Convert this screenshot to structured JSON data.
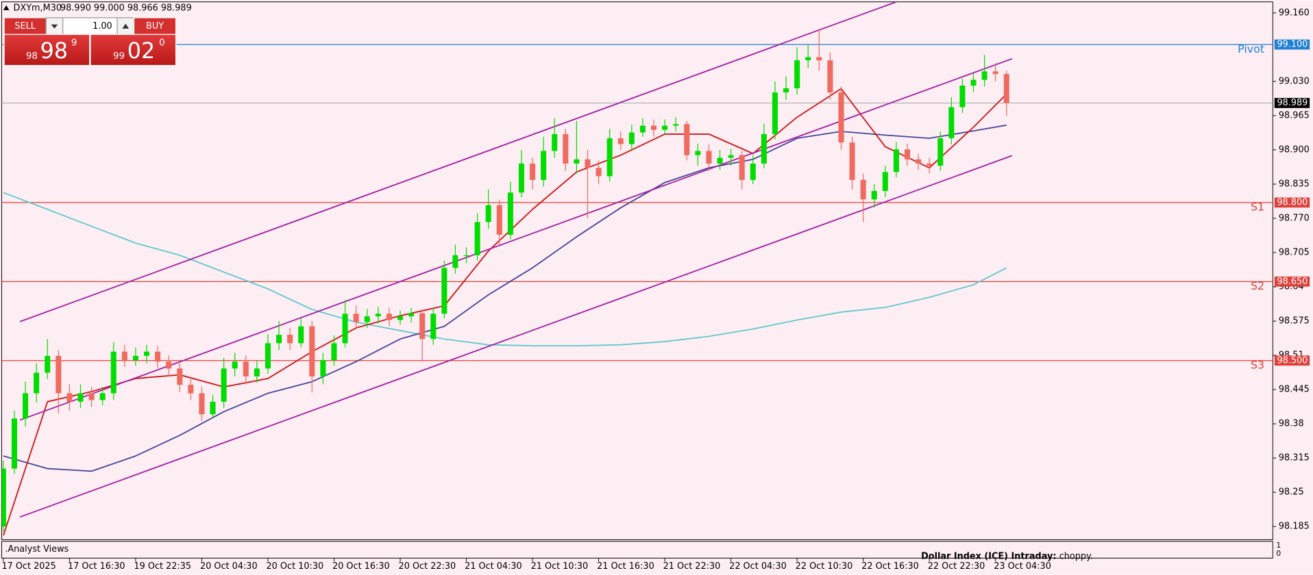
{
  "chart_data": {
    "type": "candlestick",
    "symbol": "DXYm,M30",
    "header_prices": "98.990 99.000 98.966 98.989",
    "ylim": [
      98.16,
      99.181
    ],
    "yticks": [
      {
        "value": 99.16,
        "label": "99.160"
      },
      {
        "value": 99.03,
        "label": "99.030"
      },
      98.965,
      {
        "value": 98.9,
        "label": "98.900"
      },
      98.835,
      {
        "value": 98.77,
        "label": "98.770"
      },
      98.705,
      98.64,
      98.575,
      98.51,
      98.445,
      98.38,
      98.315,
      98.25,
      98.185
    ],
    "categories": [
      "17 Oct 2025",
      null,
      null,
      null,
      null,
      null,
      "17 Oct 16:30",
      null,
      null,
      null,
      null,
      null,
      "19 Oct 22:35",
      null,
      null,
      null,
      null,
      null,
      "20 Oct 04:30",
      null,
      null,
      null,
      null,
      null,
      "20 Oct 10:30",
      null,
      null,
      null,
      null,
      null,
      "20 Oct 16:30",
      null,
      null,
      null,
      null,
      null,
      "20 Oct 22:30",
      null,
      null,
      null,
      null,
      null,
      "21 Oct 04:30",
      null,
      null,
      null,
      null,
      null,
      "21 Oct 10:30",
      null,
      null,
      null,
      null,
      null,
      "21 Oct 16:30",
      null,
      null,
      null,
      null,
      null,
      "21 Oct 22:30",
      null,
      null,
      null,
      null,
      null,
      "22 Oct 04:30",
      null,
      null,
      null,
      null,
      null,
      "22 Oct 10:30",
      null,
      null,
      null,
      null,
      null,
      "22 Oct 16:30",
      null,
      null,
      null,
      null,
      null,
      "22 Oct 22:30",
      null,
      null,
      null,
      null,
      null,
      "23 Oct 04:30",
      null
    ],
    "up_color": "#00dd00",
    "down_color": "#ef6a5f",
    "ohlc": {
      "open": [
        98.185,
        98.295,
        98.39,
        98.438,
        98.477,
        98.509,
        98.438,
        98.422,
        98.438,
        98.425,
        98.438,
        98.517,
        98.501,
        98.509,
        98.517,
        98.498,
        98.485,
        98.454,
        98.438,
        98.398,
        98.422,
        98.485,
        98.498,
        98.47,
        98.485,
        98.533,
        98.549,
        98.533,
        98.565,
        98.47,
        98.501,
        98.533,
        98.589,
        98.573,
        98.584,
        98.589,
        98.577,
        98.584,
        98.59,
        98.541,
        98.589,
        98.676,
        98.7,
        98.7,
        98.763,
        98.795,
        98.739,
        98.819,
        98.874,
        98.843,
        98.898,
        98.93,
        98.874,
        98.882,
        98.866,
        98.85,
        98.922,
        98.911,
        98.933,
        98.946,
        98.938,
        98.946,
        98.949,
        98.89,
        98.898,
        98.874,
        98.885,
        98.89,
        98.843,
        98.874,
        98.93,
        99.009,
        99.017,
        99.07,
        99.076,
        99.07,
        99.009,
        98.914,
        98.843,
        98.806,
        98.822,
        98.858,
        98.901,
        98.882,
        98.874,
        98.87,
        98.922,
        98.981,
        99.022,
        99.033,
        99.049,
        99.044
      ],
      "high": [
        98.31,
        98.405,
        98.46,
        98.495,
        98.541,
        98.52,
        98.455,
        98.455,
        98.45,
        98.45,
        98.535,
        98.53,
        98.525,
        98.53,
        98.528,
        98.51,
        98.495,
        98.465,
        98.45,
        98.435,
        98.505,
        98.515,
        98.51,
        98.5,
        98.55,
        98.575,
        98.562,
        98.58,
        98.575,
        98.515,
        98.548,
        98.615,
        98.605,
        98.598,
        98.602,
        98.6,
        98.595,
        98.6,
        98.598,
        98.6,
        98.69,
        98.72,
        98.715,
        98.78,
        98.825,
        98.805,
        98.84,
        98.9,
        98.885,
        98.925,
        98.96,
        98.94,
        98.955,
        98.9,
        98.88,
        98.94,
        98.935,
        98.948,
        98.96,
        98.958,
        98.958,
        98.962,
        98.955,
        98.912,
        98.91,
        98.9,
        98.902,
        98.898,
        98.89,
        98.95,
        99.03,
        99.04,
        99.095,
        99.1,
        99.13,
        99.085,
        99.02,
        98.925,
        98.855,
        98.835,
        98.87,
        98.915,
        98.912,
        98.892,
        98.885,
        98.935,
        99.0,
        99.035,
        99.045,
        99.08,
        99.065,
        99.05
      ],
      "low": [
        98.175,
        98.285,
        98.375,
        98.42,
        98.465,
        98.4,
        98.405,
        98.41,
        98.412,
        98.415,
        98.425,
        98.488,
        98.49,
        98.495,
        98.485,
        98.47,
        98.44,
        98.425,
        98.385,
        98.39,
        98.41,
        98.47,
        98.455,
        98.458,
        98.475,
        98.52,
        98.52,
        98.525,
        98.44,
        98.455,
        98.49,
        98.525,
        98.56,
        98.562,
        98.57,
        98.565,
        98.568,
        98.572,
        98.5,
        98.53,
        98.58,
        98.665,
        98.685,
        98.69,
        98.75,
        98.72,
        98.73,
        98.81,
        98.825,
        98.83,
        98.885,
        98.86,
        98.855,
        98.77,
        98.835,
        98.84,
        98.9,
        98.9,
        98.925,
        98.925,
        98.93,
        98.935,
        98.88,
        98.87,
        98.86,
        98.862,
        98.87,
        98.825,
        98.835,
        98.865,
        98.92,
        98.995,
        99.005,
        99.055,
        99.05,
        98.995,
        98.9,
        98.825,
        98.763,
        98.79,
        98.81,
        98.848,
        98.87,
        98.862,
        98.855,
        98.86,
        98.91,
        98.97,
        99.01,
        99.02,
        99.03,
        98.965
      ],
      "close": [
        98.295,
        98.39,
        98.438,
        98.477,
        98.509,
        98.438,
        98.422,
        98.438,
        98.425,
        98.438,
        98.517,
        98.501,
        98.509,
        98.517,
        98.498,
        98.485,
        98.454,
        98.438,
        98.398,
        98.422,
        98.485,
        98.498,
        98.47,
        98.485,
        98.533,
        98.549,
        98.533,
        98.565,
        98.47,
        98.501,
        98.533,
        98.589,
        98.573,
        98.584,
        98.589,
        98.577,
        98.584,
        98.59,
        98.541,
        98.589,
        98.676,
        98.7,
        98.7,
        98.763,
        98.795,
        98.739,
        98.819,
        98.874,
        98.843,
        98.898,
        98.93,
        98.874,
        98.882,
        98.866,
        98.85,
        98.922,
        98.911,
        98.933,
        98.946,
        98.938,
        98.946,
        98.949,
        98.89,
        98.898,
        98.874,
        98.885,
        98.89,
        98.843,
        98.874,
        98.93,
        99.009,
        99.017,
        99.07,
        99.076,
        99.07,
        99.009,
        98.914,
        98.843,
        98.806,
        98.822,
        98.858,
        98.901,
        98.882,
        98.874,
        98.87,
        98.922,
        98.981,
        99.022,
        99.033,
        99.049,
        99.044,
        98.989
      ]
    },
    "overlays": [
      {
        "color": "#5fc8cc",
        "x": [
          0,
          4,
          8,
          12,
          16,
          20,
          24,
          28,
          32,
          36,
          40,
          44,
          48,
          52,
          56,
          60,
          64,
          68,
          72,
          76,
          80,
          84,
          88,
          91
        ],
        "values": [
          98.819,
          98.787,
          98.755,
          98.723,
          98.7,
          98.668,
          98.636,
          98.597,
          98.573,
          98.557,
          98.541,
          98.53,
          98.528,
          98.528,
          98.53,
          98.536,
          98.546,
          98.56,
          98.577,
          98.592,
          98.601,
          98.62,
          98.644,
          98.676
        ]
      },
      {
        "color": "#45459a",
        "x": [
          0,
          4,
          8,
          12,
          16,
          20,
          24,
          28,
          32,
          36,
          40,
          44,
          48,
          52,
          56,
          60,
          64,
          68,
          72,
          76,
          80,
          84,
          88,
          91
        ],
        "values": [
          98.319,
          98.295,
          98.29,
          98.319,
          98.358,
          98.403,
          98.438,
          98.46,
          98.498,
          98.541,
          98.565,
          98.625,
          98.676,
          98.735,
          98.79,
          98.838,
          98.866,
          98.882,
          98.922,
          98.935,
          98.928,
          98.922,
          98.936,
          98.947
        ]
      },
      {
        "color": "#d01616",
        "x": [
          0,
          4,
          8,
          12,
          16,
          20,
          24,
          28,
          32,
          36,
          40,
          44,
          48,
          52,
          56,
          60,
          64,
          68,
          72,
          76,
          80,
          84,
          88,
          91
        ],
        "values": [
          98.168,
          98.422,
          98.441,
          98.466,
          98.473,
          98.45,
          98.466,
          98.517,
          98.562,
          98.585,
          98.604,
          98.708,
          98.787,
          98.858,
          98.89,
          98.93,
          98.93,
          98.893,
          98.962,
          99.016,
          98.906,
          98.866,
          98.943,
          99.006
        ]
      },
      {
        "color": "#a21fa2",
        "x": [
          1.5,
          81
        ],
        "values": [
          98.574,
          99.181
        ]
      },
      {
        "color": "#a21fa2",
        "x": [
          1.5,
          91.5
        ],
        "values": [
          98.387,
          99.073
        ]
      },
      {
        "color": "#a21fa2",
        "x": [
          1.5,
          91.5
        ],
        "values": [
          98.203,
          98.889
        ]
      }
    ],
    "levels": [
      {
        "name": "Pivot",
        "value": 99.1,
        "label": "99.100",
        "color": "#1e7fd6"
      },
      {
        "name": "S1",
        "value": 98.8,
        "label": "98.800",
        "color": "#e0403a"
      },
      {
        "name": "S2",
        "value": 98.65,
        "label": "98.650",
        "color": "#e0403a"
      },
      {
        "name": "S3",
        "value": 98.5,
        "label": "98.500",
        "color": "#e0403a"
      }
    ],
    "last_price": {
      "value": 98.989,
      "label": "98.989",
      "color": "#9aa8a8"
    },
    "indicator": {
      "title": ".Analyst Views",
      "headline": "Dollar Index (ICE) Intraday:",
      "text": "choppy.",
      "scale": [
        "1",
        "0"
      ]
    }
  },
  "trade_panel": {
    "sell": "SELL",
    "buy": "BUY",
    "lot": "1.00",
    "bid": {
      "small": "98",
      "big": "98",
      "sup": "9"
    },
    "ask": {
      "small": "99",
      "big": "02",
      "sup": "0"
    }
  }
}
